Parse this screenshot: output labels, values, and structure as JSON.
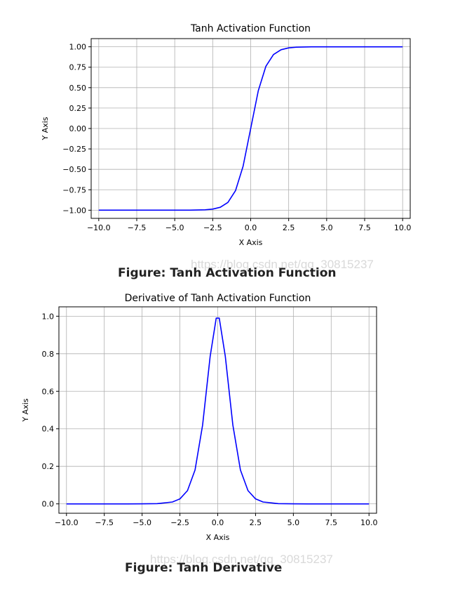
{
  "chart_data": [
    {
      "type": "line",
      "title": "Tanh Activation Function",
      "xlabel": "X Axis",
      "ylabel": "Y Axis",
      "xlim": [
        -10.5,
        10.5
      ],
      "ylim": [
        -1.1,
        1.1
      ],
      "grid": true,
      "xticks": [
        -10,
        -7.5,
        -5,
        -2.5,
        0,
        2.5,
        5,
        7.5,
        10
      ],
      "xtick_labels": [
        "−10.0",
        "−7.5",
        "−5.0",
        "−2.5",
        "0.0",
        "2.5",
        "5.0",
        "7.5",
        "10.0"
      ],
      "yticks": [
        -1,
        -0.75,
        -0.5,
        -0.25,
        0,
        0.25,
        0.5,
        0.75,
        1
      ],
      "ytick_labels": [
        "−1.00",
        "−0.75",
        "−0.50",
        "−0.25",
        "0.00",
        "0.25",
        "0.50",
        "0.75",
        "1.00"
      ],
      "series": [
        {
          "color": "#0000ff",
          "x": [
            -10,
            -8,
            -6,
            -5,
            -4,
            -3,
            -2.5,
            -2,
            -1.5,
            -1,
            -0.5,
            0,
            0.5,
            1,
            1.5,
            2,
            2.5,
            3,
            4,
            5,
            6,
            8,
            10
          ],
          "y": [
            -1.0,
            -1.0,
            -1.0,
            -0.9999,
            -0.9993,
            -0.9951,
            -0.9866,
            -0.964,
            -0.9051,
            -0.7616,
            -0.4621,
            0.0,
            0.4621,
            0.7616,
            0.9051,
            0.964,
            0.9866,
            0.9951,
            0.9993,
            0.9999,
            1.0,
            1.0,
            1.0
          ]
        }
      ]
    },
    {
      "type": "line",
      "title": "Derivative of Tanh Activation Function",
      "xlabel": "X Axis",
      "ylabel": "Y Axis",
      "xlim": [
        -10.5,
        10.5
      ],
      "ylim": [
        -0.05,
        1.05
      ],
      "grid": true,
      "xticks": [
        -10,
        -7.5,
        -5,
        -2.5,
        0,
        2.5,
        5,
        7.5,
        10
      ],
      "xtick_labels": [
        "−10.0",
        "−7.5",
        "−5.0",
        "−2.5",
        "0.0",
        "2.5",
        "5.0",
        "7.5",
        "10.0"
      ],
      "yticks": [
        0,
        0.2,
        0.4,
        0.6,
        0.8,
        1.0
      ],
      "ytick_labels": [
        "0.0",
        "0.2",
        "0.4",
        "0.6",
        "0.8",
        "1.0"
      ],
      "series": [
        {
          "color": "#0000ff",
          "x": [
            -10,
            -8,
            -6,
            -5,
            -4,
            -3,
            -2.5,
            -2,
            -1.5,
            -1,
            -0.5,
            -0.1,
            0.1,
            0.5,
            1,
            1.5,
            2,
            2.5,
            3,
            4,
            5,
            6,
            8,
            10
          ],
          "y": [
            0.0,
            0.0,
            0.0,
            0.0002,
            0.0013,
            0.0099,
            0.0266,
            0.0707,
            0.1807,
            0.42,
            0.7864,
            0.99,
            0.99,
            0.7864,
            0.42,
            0.1807,
            0.0707,
            0.0266,
            0.0099,
            0.0013,
            0.0002,
            0.0,
            0.0,
            0.0
          ]
        }
      ]
    }
  ],
  "captions": {
    "top": "Figure: Tanh Activation Function",
    "bottom": "Figure: Tanh Derivative"
  },
  "watermarks": {
    "top": "https://blog.csdn.net/qq_30815237",
    "bottom": "https://blog.csdn.net/qq_30815237"
  }
}
